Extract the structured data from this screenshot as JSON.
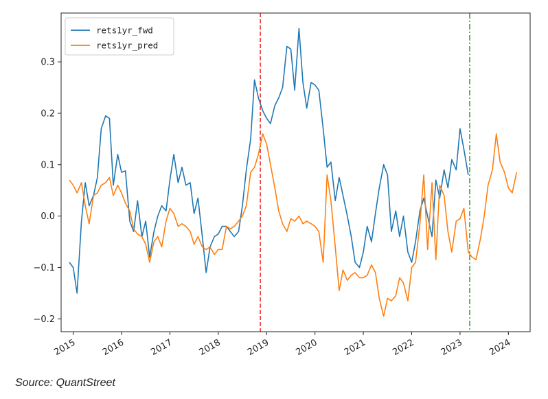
{
  "chart_data": {
    "type": "line",
    "title": "",
    "xlabel": "",
    "ylabel": "",
    "xlim": [
      2014.75,
      2024.45
    ],
    "ylim": [
      -0.225,
      0.395
    ],
    "yticks": [
      -0.2,
      -0.1,
      0.0,
      0.1,
      0.2,
      0.3
    ],
    "ytick_labels": [
      "−0.2",
      "−0.1",
      "0.0",
      "0.1",
      "0.2",
      "0.3"
    ],
    "xticks": [
      2015,
      2016,
      2017,
      2018,
      2019,
      2020,
      2021,
      2022,
      2023,
      2024
    ],
    "xtick_labels": [
      "2015",
      "2016",
      "2017",
      "2018",
      "2019",
      "2020",
      "2021",
      "2022",
      "2023",
      "2024"
    ],
    "grid": false,
    "legend_position": "top-left",
    "vlines": [
      {
        "x": 2018.87,
        "color": "#ee2222",
        "style": "dashed"
      },
      {
        "x": 2023.2,
        "color": "#2ca02c",
        "style": "dashdot"
      }
    ],
    "series": [
      {
        "name": "rets1yr_fwd",
        "color": "#1f77b4",
        "x": [
          2014.92,
          2015.0,
          2015.08,
          2015.17,
          2015.25,
          2015.33,
          2015.42,
          2015.5,
          2015.58,
          2015.67,
          2015.75,
          2015.83,
          2015.92,
          2016.0,
          2016.08,
          2016.17,
          2016.25,
          2016.33,
          2016.42,
          2016.5,
          2016.58,
          2016.67,
          2016.75,
          2016.83,
          2016.92,
          2017.0,
          2017.08,
          2017.17,
          2017.25,
          2017.33,
          2017.42,
          2017.5,
          2017.58,
          2017.67,
          2017.75,
          2017.83,
          2017.92,
          2018.0,
          2018.08,
          2018.17,
          2018.25,
          2018.33,
          2018.42,
          2018.5,
          2018.58,
          2018.67,
          2018.75,
          2018.83,
          2018.92,
          2019.0,
          2019.08,
          2019.17,
          2019.25,
          2019.33,
          2019.42,
          2019.5,
          2019.58,
          2019.67,
          2019.75,
          2019.83,
          2019.92,
          2020.0,
          2020.08,
          2020.17,
          2020.25,
          2020.33,
          2020.42,
          2020.5,
          2020.58,
          2020.67,
          2020.75,
          2020.83,
          2020.92,
          2021.0,
          2021.08,
          2021.17,
          2021.25,
          2021.33,
          2021.42,
          2021.5,
          2021.58,
          2021.67,
          2021.75,
          2021.83,
          2021.92,
          2022.0,
          2022.08,
          2022.17,
          2022.25,
          2022.33,
          2022.42,
          2022.5,
          2022.58,
          2022.67,
          2022.75,
          2022.83,
          2022.92,
          2023.0,
          2023.08,
          2023.17
        ],
        "y": [
          -0.09,
          -0.1,
          -0.15,
          -0.01,
          0.065,
          0.02,
          0.04,
          0.075,
          0.17,
          0.195,
          0.19,
          0.06,
          0.12,
          0.085,
          0.088,
          -0.01,
          -0.03,
          0.03,
          -0.04,
          -0.01,
          -0.08,
          -0.03,
          0.0,
          0.02,
          0.01,
          0.07,
          0.12,
          0.065,
          0.095,
          0.06,
          0.065,
          0.005,
          0.035,
          -0.04,
          -0.11,
          -0.06,
          -0.04,
          -0.035,
          -0.02,
          -0.02,
          -0.03,
          -0.04,
          -0.03,
          0.02,
          0.09,
          0.15,
          0.265,
          0.23,
          0.205,
          0.19,
          0.18,
          0.215,
          0.23,
          0.25,
          0.33,
          0.325,
          0.245,
          0.365,
          0.26,
          0.21,
          0.26,
          0.255,
          0.245,
          0.17,
          0.095,
          0.105,
          0.03,
          0.075,
          0.04,
          0.0,
          -0.04,
          -0.09,
          -0.1,
          -0.07,
          -0.02,
          -0.05,
          0.005,
          0.055,
          0.1,
          0.08,
          -0.03,
          0.01,
          -0.04,
          0.0,
          -0.07,
          -0.09,
          -0.05,
          0.01,
          0.035,
          0.0,
          -0.04,
          0.07,
          0.035,
          0.09,
          0.055,
          0.11,
          0.09,
          0.17,
          0.13,
          0.08
        ]
      },
      {
        "name": "rets1yr_pred",
        "color": "#ff7f0e",
        "x": [
          2014.92,
          2015.0,
          2015.08,
          2015.17,
          2015.25,
          2015.33,
          2015.42,
          2015.5,
          2015.58,
          2015.67,
          2015.75,
          2015.83,
          2015.92,
          2016.0,
          2016.08,
          2016.17,
          2016.25,
          2016.33,
          2016.42,
          2016.5,
          2016.58,
          2016.67,
          2016.75,
          2016.83,
          2016.92,
          2017.0,
          2017.08,
          2017.17,
          2017.25,
          2017.33,
          2017.42,
          2017.5,
          2017.58,
          2017.67,
          2017.75,
          2017.83,
          2017.92,
          2018.0,
          2018.08,
          2018.17,
          2018.25,
          2018.33,
          2018.42,
          2018.5,
          2018.58,
          2018.67,
          2018.75,
          2018.83,
          2018.92,
          2019.0,
          2019.08,
          2019.17,
          2019.25,
          2019.33,
          2019.42,
          2019.5,
          2019.58,
          2019.67,
          2019.75,
          2019.83,
          2019.92,
          2020.0,
          2020.08,
          2020.17,
          2020.25,
          2020.33,
          2020.42,
          2020.5,
          2020.58,
          2020.67,
          2020.75,
          2020.83,
          2020.92,
          2021.0,
          2021.08,
          2021.17,
          2021.25,
          2021.33,
          2021.42,
          2021.5,
          2021.58,
          2021.67,
          2021.75,
          2021.83,
          2021.92,
          2022.0,
          2022.08,
          2022.17,
          2022.25,
          2022.33,
          2022.42,
          2022.5,
          2022.58,
          2022.67,
          2022.75,
          2022.83,
          2022.92,
          2023.0,
          2023.08,
          2023.17,
          2023.25,
          2023.33,
          2023.42,
          2023.5,
          2023.58,
          2023.67,
          2023.75,
          2023.83,
          2023.92,
          2024.0,
          2024.08,
          2024.17
        ],
        "y": [
          0.07,
          0.06,
          0.045,
          0.065,
          0.02,
          -0.015,
          0.04,
          0.045,
          0.06,
          0.065,
          0.075,
          0.04,
          0.06,
          0.045,
          0.025,
          0.01,
          -0.025,
          -0.035,
          -0.04,
          -0.055,
          -0.09,
          -0.05,
          -0.04,
          -0.06,
          -0.01,
          0.015,
          0.005,
          -0.02,
          -0.015,
          -0.02,
          -0.03,
          -0.055,
          -0.04,
          -0.06,
          -0.065,
          -0.06,
          -0.075,
          -0.065,
          -0.065,
          -0.02,
          -0.025,
          -0.02,
          -0.01,
          0.0,
          0.02,
          0.085,
          0.095,
          0.12,
          0.16,
          0.14,
          0.1,
          0.055,
          0.01,
          -0.015,
          -0.03,
          -0.005,
          -0.01,
          0.0,
          -0.015,
          -0.01,
          -0.015,
          -0.02,
          -0.03,
          -0.09,
          0.08,
          0.03,
          -0.06,
          -0.145,
          -0.105,
          -0.125,
          -0.115,
          -0.11,
          -0.12,
          -0.12,
          -0.115,
          -0.095,
          -0.11,
          -0.16,
          -0.195,
          -0.16,
          -0.165,
          -0.155,
          -0.12,
          -0.13,
          -0.165,
          -0.1,
          -0.09,
          -0.015,
          0.08,
          -0.065,
          0.065,
          -0.085,
          0.06,
          0.04,
          -0.03,
          -0.07,
          -0.01,
          -0.005,
          0.015,
          -0.07,
          -0.08,
          -0.085,
          -0.045,
          0.0,
          0.06,
          0.09,
          0.16,
          0.105,
          0.085,
          0.055,
          0.045,
          0.085
        ]
      }
    ]
  },
  "source_note": "Source: QuantStreet"
}
